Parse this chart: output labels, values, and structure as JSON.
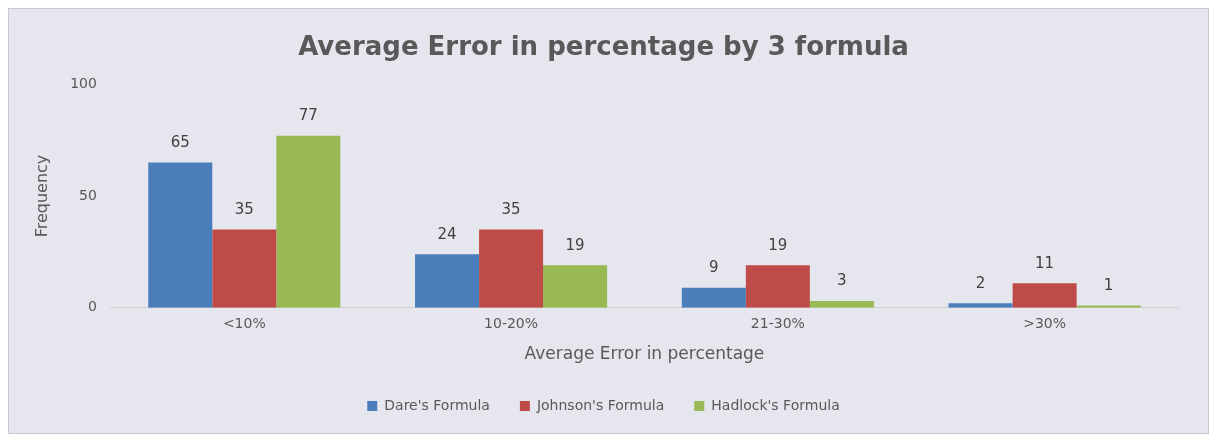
{
  "chart_data": {
    "type": "bar",
    "title": "Average Error in percentage by 3 formula",
    "xlabel": "Average Error in percentage",
    "ylabel": "Frequency",
    "categories": [
      "<10%",
      "10-20%",
      "21-30%",
      ">30%"
    ],
    "series": [
      {
        "name": "Dare's Formula",
        "color": "#4a7ebb",
        "values": [
          65,
          24,
          9,
          2
        ]
      },
      {
        "name": "Johnson's Formula",
        "color": "#be4b48",
        "values": [
          35,
          35,
          19,
          11
        ]
      },
      {
        "name": "Hadlock's Formula",
        "color": "#98b954",
        "values": [
          77,
          19,
          3,
          1
        ]
      }
    ],
    "ylim": [
      0,
      100
    ],
    "yticks": [
      0,
      50,
      100
    ],
    "grid": false,
    "legend": "bottom",
    "data_labels": true
  }
}
